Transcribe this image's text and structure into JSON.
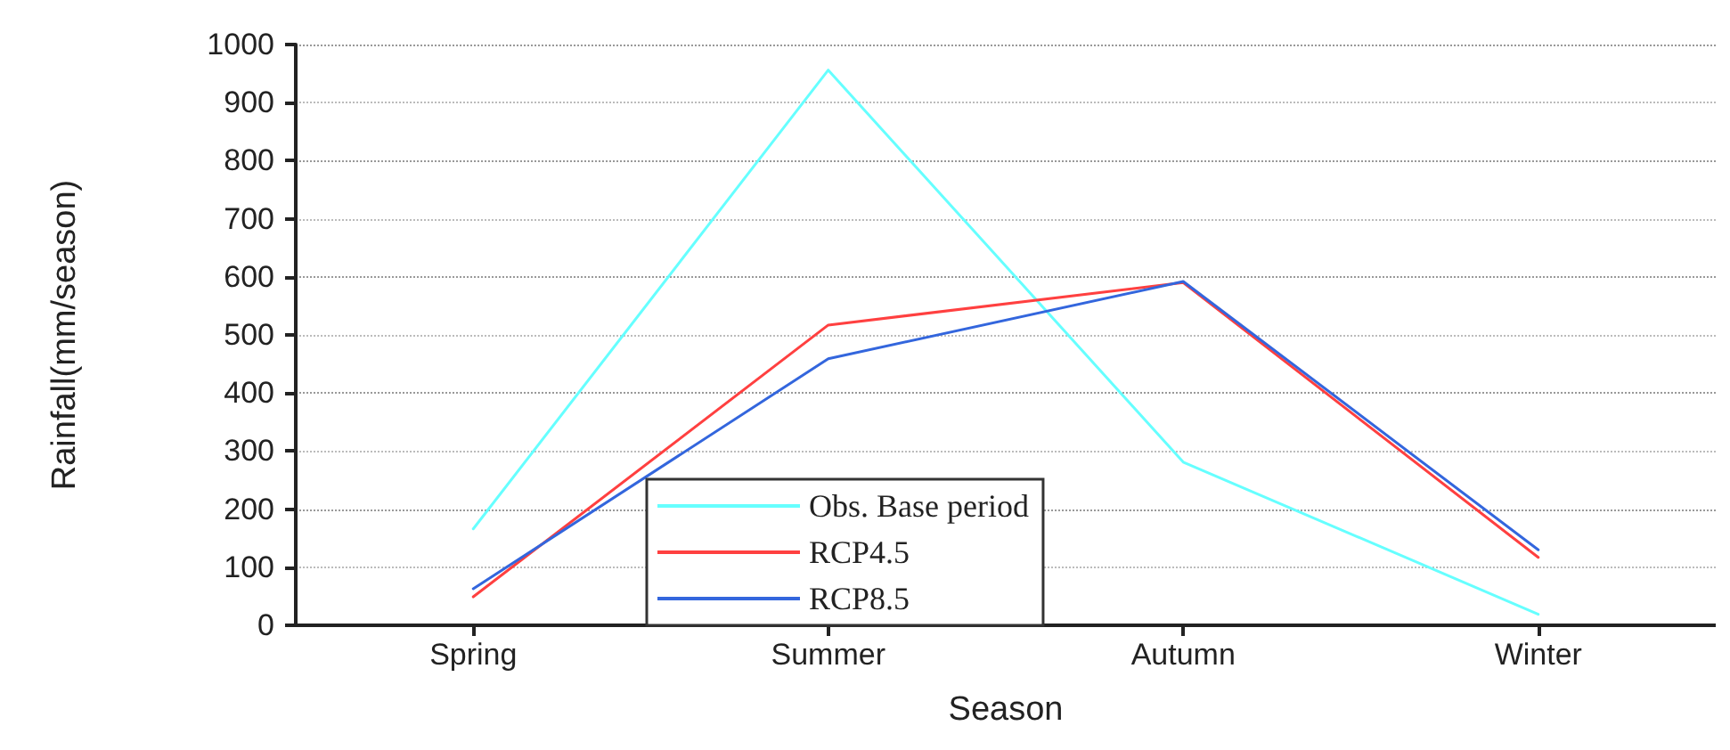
{
  "chart_data": {
    "type": "line",
    "xlabel": "Season",
    "ylabel": "Rainfall(mm/season)",
    "categories": [
      "Spring",
      "Summer",
      "Autumn",
      "Winter"
    ],
    "series": [
      {
        "name": "Obs. Base period",
        "color": "#66ffff",
        "values": [
          166,
          956,
          281,
          19
        ]
      },
      {
        "name": "RCP4.5",
        "color": "#ff4040",
        "values": [
          49,
          517,
          590,
          117
        ]
      },
      {
        "name": "RCP8.5",
        "color": "#3366dd",
        "values": [
          63,
          459,
          592,
          130
        ]
      }
    ],
    "ylim": [
      0,
      1000
    ],
    "yticks": [
      0,
      100,
      200,
      300,
      400,
      500,
      600,
      700,
      800,
      900,
      1000
    ],
    "grid": "y",
    "legend": "bottom",
    "marker": "none",
    "line_style": "solid"
  }
}
